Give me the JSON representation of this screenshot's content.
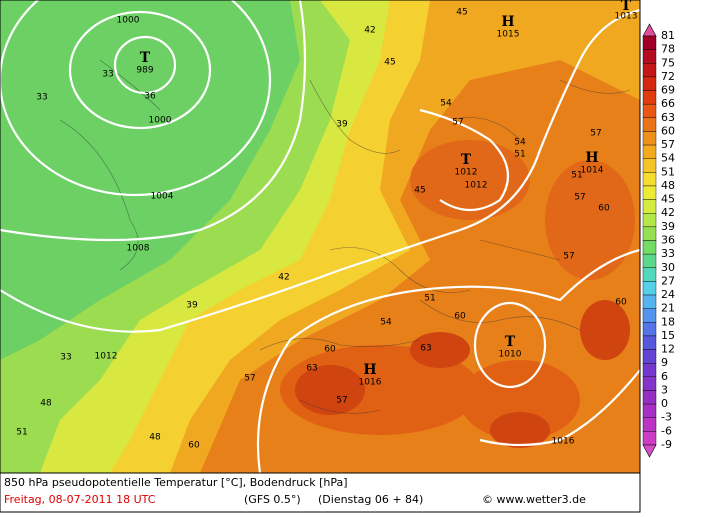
{
  "map": {
    "centers": [
      {
        "symbol": "T",
        "value": "989"
      },
      {
        "symbol": "H",
        "value": "1015"
      },
      {
        "symbol": "T",
        "value": "1012"
      },
      {
        "symbol": "H",
        "value": "1014"
      },
      {
        "symbol": "T",
        "value": "1010"
      },
      {
        "symbol": "H",
        "value": "1016"
      },
      {
        "symbol": "T",
        "value": "1013"
      }
    ],
    "isobar_labels": [
      "1000",
      "1000",
      "1004",
      "1008",
      "1012",
      "1012",
      "1016"
    ],
    "contour_labels": [
      "33",
      "36",
      "33",
      "39",
      "42",
      "45",
      "45",
      "54",
      "57",
      "54",
      "51",
      "57",
      "60",
      "57",
      "51",
      "45",
      "42",
      "39",
      "33",
      "48",
      "51",
      "48",
      "60",
      "57",
      "60",
      "63",
      "57",
      "51",
      "54",
      "63",
      "60",
      "57",
      "60"
    ]
  },
  "legend": {
    "labels": [
      81,
      78,
      75,
      72,
      69,
      66,
      63,
      60,
      57,
      54,
      51,
      48,
      45,
      42,
      39,
      36,
      33,
      30,
      27,
      24,
      21,
      18,
      15,
      12,
      9,
      6,
      3,
      0,
      -3,
      -6,
      -9
    ],
    "colors": [
      "#e0509a",
      "#a00028",
      "#b40c20",
      "#c41818",
      "#d42810",
      "#e03c10",
      "#e85814",
      "#ec7418",
      "#f0901c",
      "#f4aa20",
      "#f4c428",
      "#f4dc30",
      "#ecec38",
      "#d4ec40",
      "#b4e848",
      "#94e050",
      "#74dc64",
      "#5cd88c",
      "#54d8bc",
      "#54d0e8",
      "#54b4f0",
      "#5494f0",
      "#5474e8",
      "#5858dc",
      "#6444d4",
      "#7438cc",
      "#8434c8",
      "#9430c4",
      "#a830c4",
      "#bc34c4",
      "#cc3cc4",
      "#d44cc8"
    ]
  },
  "footer": {
    "line1": "850 hPa pseudopotentielle Temperatur [°C], Bodendruck [hPa]",
    "date": "Freitag, 08-07-2011  18 UTC",
    "model": "(GFS 0.5°)",
    "run": "(Dienstag 06 + 84)",
    "copyright": "© www.wetter3.de"
  }
}
